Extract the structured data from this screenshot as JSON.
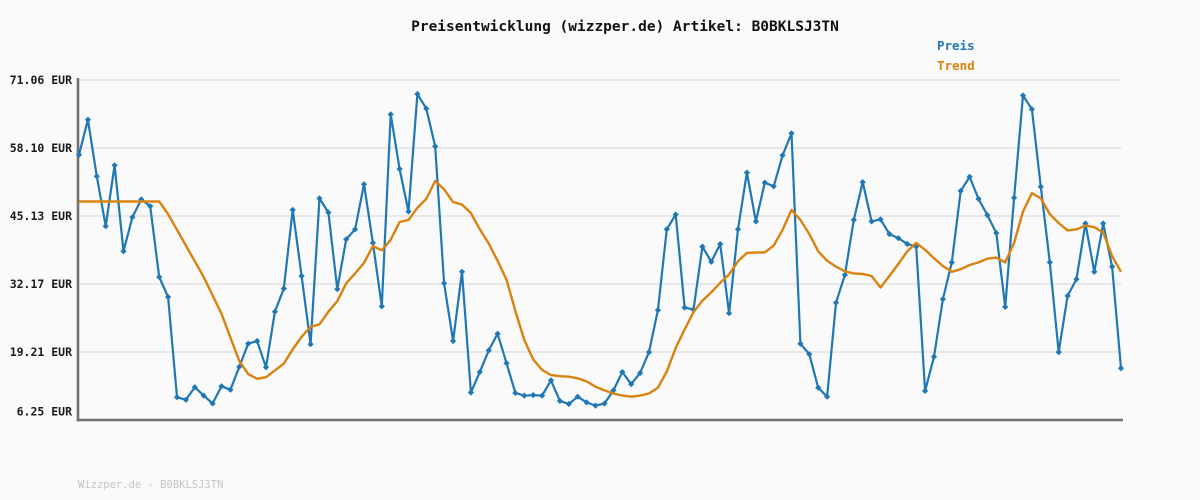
{
  "title": "Preisentwicklung (wizzper.de) Artikel: B0BKLSJ3TN",
  "footer": {
    "text": "Wizzper.de - B0BKLSJ3TN"
  },
  "colors": {
    "background": "#fafafa",
    "grid": "#e7e7e7",
    "axis": "#717171",
    "title_text": "#111111",
    "tick_text": "#1a1a1a",
    "footer_text": "#c4c4c4",
    "preis": "#1f77b4",
    "trend": "#d9820f"
  },
  "chart_data": {
    "type": "line",
    "title": "Preisentwicklung (wizzper.de) Artikel: B0BKLSJ3TN",
    "xlabel": "",
    "ylabel": "",
    "currency": "EUR",
    "ylim": [
      6.25,
      71.06
    ],
    "grid": "horizontal",
    "legend_position": "top-right-outside",
    "x_tick_labels": [],
    "y_ticks": [
      {
        "value": 71.06,
        "label": "71.06 EUR"
      },
      {
        "value": 58.1,
        "label": "58.10 EUR"
      },
      {
        "value": 45.13,
        "label": "45.13 EUR"
      },
      {
        "value": 32.17,
        "label": "32.17 EUR"
      },
      {
        "value": 19.21,
        "label": "19.21 EUR"
      },
      {
        "value": 6.25,
        "label": "6.25 EUR"
      }
    ],
    "series": [
      {
        "name": "Preis",
        "color": "#1f77b4",
        "marker": "diamond",
        "values": [
          56.8,
          63.5,
          52.7,
          43.2,
          54.8,
          38.4,
          44.9,
          48.3,
          47.0,
          33.5,
          29.7,
          10.6,
          10.1,
          12.5,
          10.9,
          9.4,
          12.7,
          12.0,
          16.4,
          20.8,
          21.3,
          16.3,
          26.9,
          31.3,
          46.3,
          33.7,
          20.7,
          48.5,
          45.8,
          31.2,
          40.7,
          42.6,
          51.2,
          40.0,
          27.9,
          64.5,
          54.1,
          46.0,
          68.4,
          65.6,
          58.4,
          32.3,
          21.3,
          34.5,
          11.5,
          15.4,
          19.5,
          22.7,
          17.1,
          11.4,
          10.9,
          11.0,
          10.9,
          13.8,
          9.9,
          9.3,
          10.7,
          9.6,
          9.0,
          9.4,
          11.9,
          15.4,
          13.1,
          15.2,
          19.2,
          27.2,
          42.6,
          45.4,
          27.7,
          27.3,
          39.3,
          36.4,
          39.8,
          26.6,
          42.6,
          53.4,
          44.1,
          51.5,
          50.8,
          56.7,
          60.9,
          20.8,
          18.8,
          12.4,
          10.7,
          28.6,
          33.9,
          44.4,
          51.6,
          44.1,
          44.5,
          41.7,
          40.9,
          39.8,
          39.3,
          11.8,
          18.3,
          29.3,
          36.3,
          49.9,
          52.6,
          48.4,
          45.3,
          41.9,
          27.8,
          48.6,
          68.1,
          65.5,
          50.7,
          36.3,
          19.2,
          29.9,
          33.1,
          43.7,
          34.5,
          43.7,
          35.5,
          16.1
        ]
      },
      {
        "name": "Trend",
        "color": "#d9820f",
        "marker": "none",
        "values": [
          47.9,
          47.9,
          47.9,
          47.9,
          47.9,
          47.9,
          47.9,
          47.9,
          47.9,
          47.9,
          45.5,
          42.5,
          39.5,
          36.5,
          33.5,
          30.0,
          26.5,
          22.0,
          17.5,
          15.0,
          14.1,
          14.4,
          15.7,
          17.0,
          19.7,
          22.1,
          24.0,
          24.5,
          26.9,
          28.9,
          32.3,
          34.2,
          36.2,
          39.4,
          38.6,
          40.6,
          44.0,
          44.4,
          46.7,
          48.4,
          51.8,
          50.2,
          47.8,
          47.3,
          45.7,
          42.6,
          39.9,
          36.6,
          33.0,
          27.0,
          21.5,
          17.8,
          15.8,
          14.8,
          14.6,
          14.5,
          14.2,
          13.6,
          12.6,
          11.9,
          11.3,
          10.9,
          10.7,
          10.9,
          11.3,
          12.4,
          15.5,
          20.0,
          23.5,
          26.8,
          29.0,
          30.6,
          32.4,
          34.0,
          36.5,
          38.1,
          38.2,
          38.2,
          39.5,
          42.5,
          46.3,
          44.4,
          41.7,
          38.4,
          36.6,
          35.5,
          34.6,
          34.2,
          34.1,
          33.7,
          31.5,
          33.7,
          36.0,
          38.4,
          40.0,
          38.7,
          37.1,
          35.6,
          34.5,
          35.0,
          35.8,
          36.3,
          37.0,
          37.2,
          36.3,
          40.0,
          46.0,
          49.5,
          48.5,
          45.5,
          43.8,
          42.4,
          42.6,
          43.3,
          43.0,
          42.0,
          37.5,
          34.5
        ]
      }
    ]
  }
}
